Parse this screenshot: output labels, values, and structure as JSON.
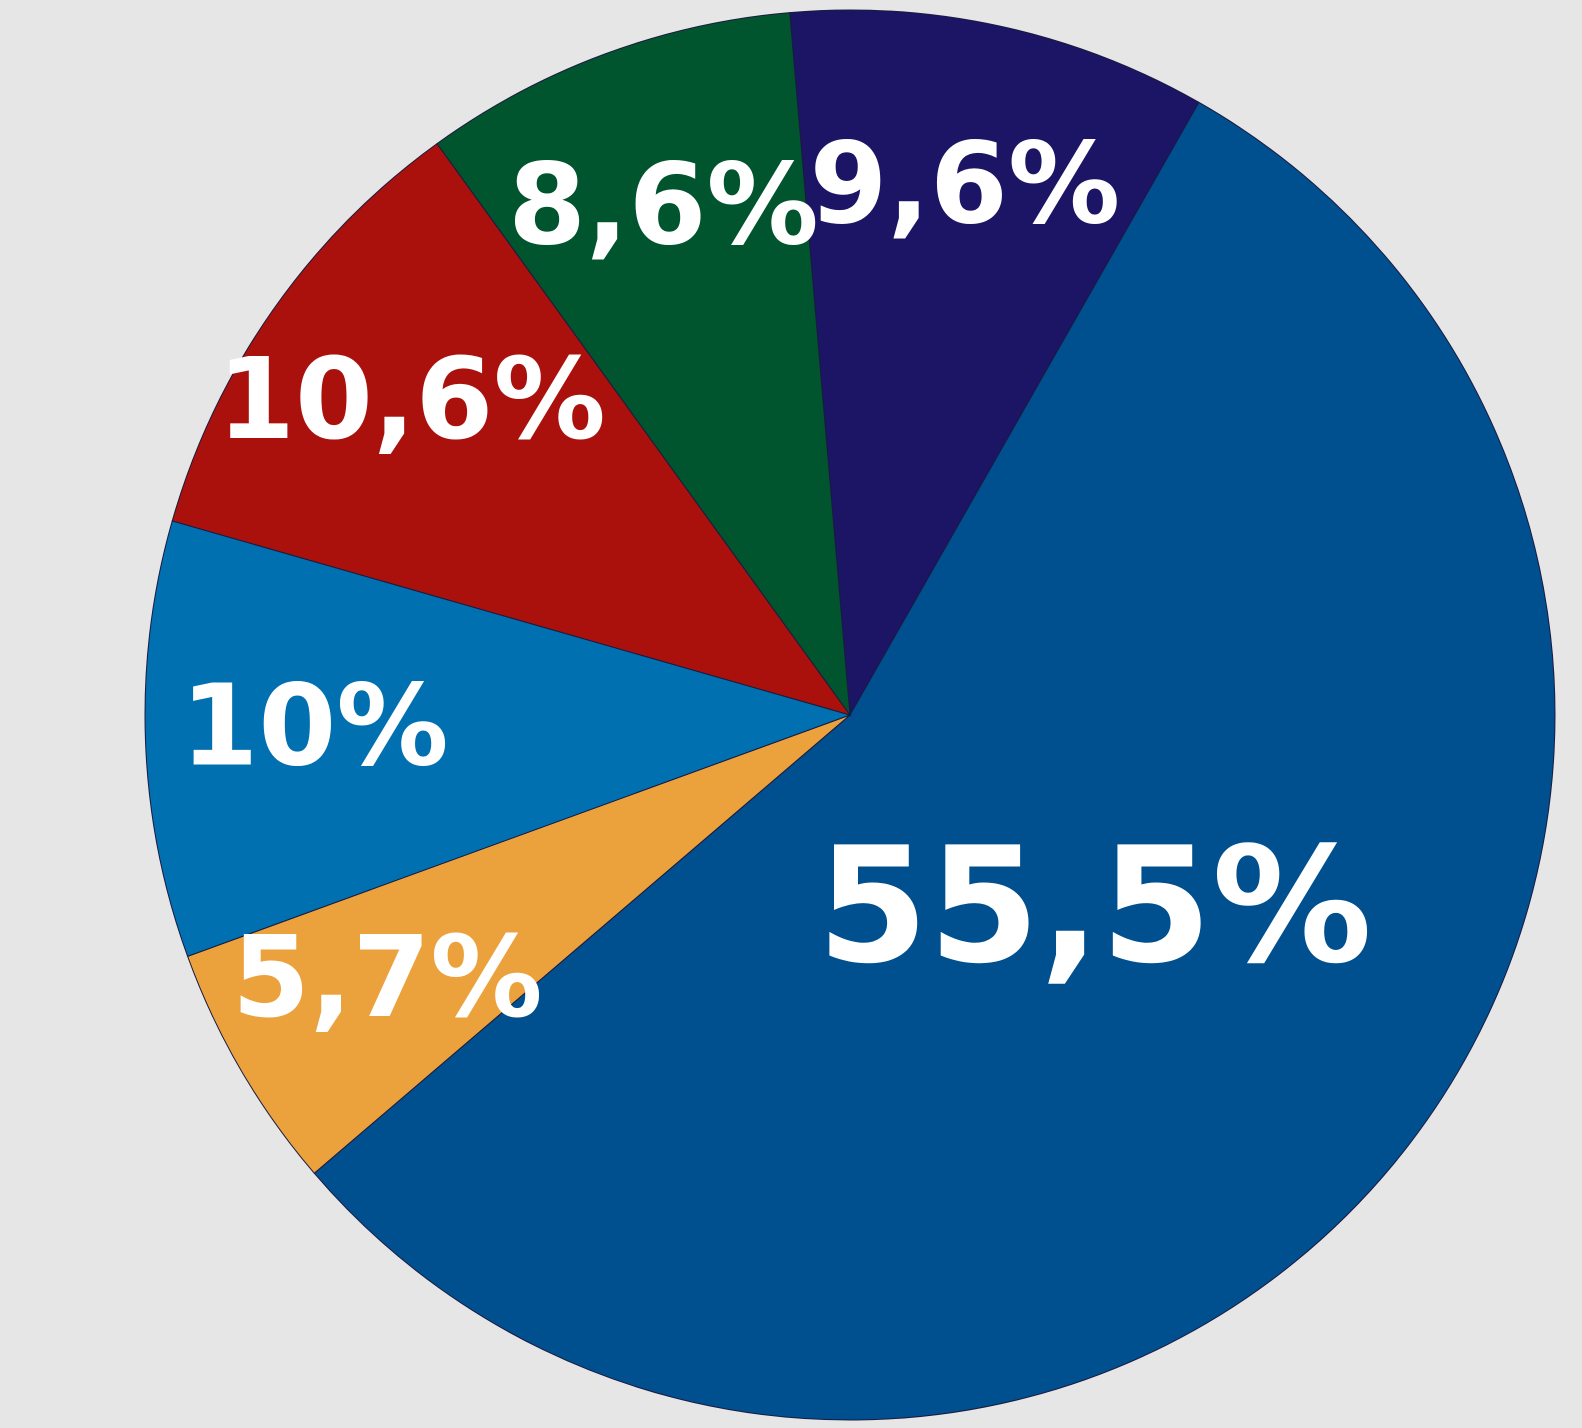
{
  "chart_data": {
    "type": "pie",
    "values": [
      9.6,
      55.5,
      5.7,
      10,
      10.6,
      8.6
    ],
    "value_labels": [
      "9,6%",
      "55,5%",
      "5,7%",
      "10%",
      "10,6%",
      "8,6%"
    ],
    "colors": [
      "#1c1464",
      "#004f8f",
      "#eca23c",
      "#0070b0",
      "#aa110d",
      "#00552f"
    ]
  }
}
